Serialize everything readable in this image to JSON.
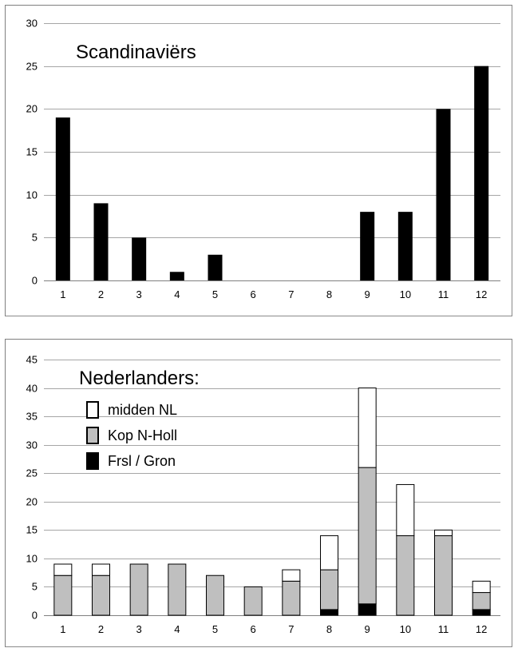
{
  "chart_data": [
    {
      "type": "bar",
      "title": "Scandinaviërs",
      "categories": [
        "1",
        "2",
        "3",
        "4",
        "5",
        "6",
        "7",
        "8",
        "9",
        "10",
        "11",
        "12"
      ],
      "values": [
        19,
        9,
        5,
        1,
        3,
        0,
        0,
        0,
        8,
        8,
        20,
        25
      ],
      "ylim": [
        0,
        30
      ],
      "yticks": [
        "0",
        "5",
        "10",
        "15",
        "20",
        "25",
        "30"
      ],
      "grid": true,
      "colors": {
        "bar": "#000000",
        "grid": "#a6a6a6"
      }
    },
    {
      "type": "bar",
      "stacked": true,
      "title": "Nederlanders:",
      "categories": [
        "1",
        "2",
        "3",
        "4",
        "5",
        "6",
        "7",
        "8",
        "9",
        "10",
        "11",
        "12"
      ],
      "series": [
        {
          "name": "Frsl / Gron",
          "color": "#000000",
          "values": [
            0,
            0,
            0,
            0,
            0,
            0,
            0,
            1,
            2,
            0,
            0,
            1
          ]
        },
        {
          "name": "Kop N-Holl",
          "color": "#bfbfbf",
          "values": [
            7,
            7,
            9,
            9,
            7,
            5,
            6,
            7,
            24,
            14,
            14,
            3
          ]
        },
        {
          "name": "midden NL",
          "color": "#ffffff",
          "values": [
            2,
            2,
            0,
            0,
            0,
            0,
            2,
            6,
            14,
            9,
            1,
            2
          ]
        }
      ],
      "legend_order": [
        "midden NL",
        "Kop N-Holl",
        "Frsl / Gron"
      ],
      "ylim": [
        0,
        45
      ],
      "yticks": [
        "0",
        "5",
        "10",
        "15",
        "20",
        "25",
        "30",
        "35",
        "40",
        "45"
      ],
      "grid": true,
      "legend_position": "top-left"
    }
  ]
}
